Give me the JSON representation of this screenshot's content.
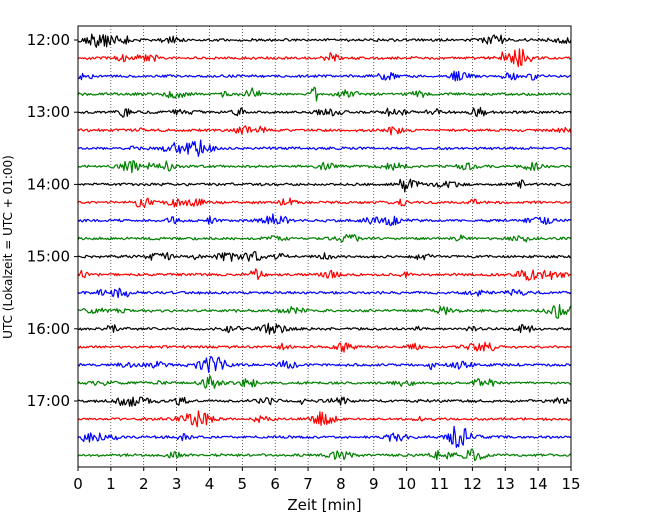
{
  "chart_data": {
    "type": "line",
    "subtype": "helicorder",
    "title": "",
    "xlabel": "Zeit  [min]",
    "ylabel": "UTC (Lokalzeit = UTC + 01:00)",
    "xlim": [
      0,
      15
    ],
    "x_ticks": [
      0,
      1,
      2,
      3,
      4,
      5,
      6,
      7,
      8,
      9,
      10,
      11,
      12,
      13,
      14,
      15
    ],
    "x_tick_labels": [
      "0",
      "1",
      "2",
      "3",
      "4",
      "5",
      "6",
      "7",
      "8",
      "9",
      "10",
      "11",
      "12",
      "13",
      "14",
      "15"
    ],
    "y_tick_labels": [
      "12:00",
      "13:00",
      "14:00",
      "15:00",
      "16:00",
      "17:00"
    ],
    "trace_minutes": 15,
    "trace_start_times": [
      "12:00",
      "12:15",
      "12:30",
      "12:45",
      "13:00",
      "13:15",
      "13:30",
      "13:45",
      "14:00",
      "14:15",
      "14:30",
      "14:45",
      "15:00",
      "15:15",
      "15:30",
      "15:45",
      "16:00",
      "16:15",
      "16:30",
      "16:45",
      "17:00",
      "17:15",
      "17:30",
      "17:45"
    ],
    "line_colors": [
      "#000000",
      "#ff0000",
      "#0000ff",
      "#008000"
    ],
    "grid": {
      "vertical": true,
      "style": "dotted"
    }
  }
}
